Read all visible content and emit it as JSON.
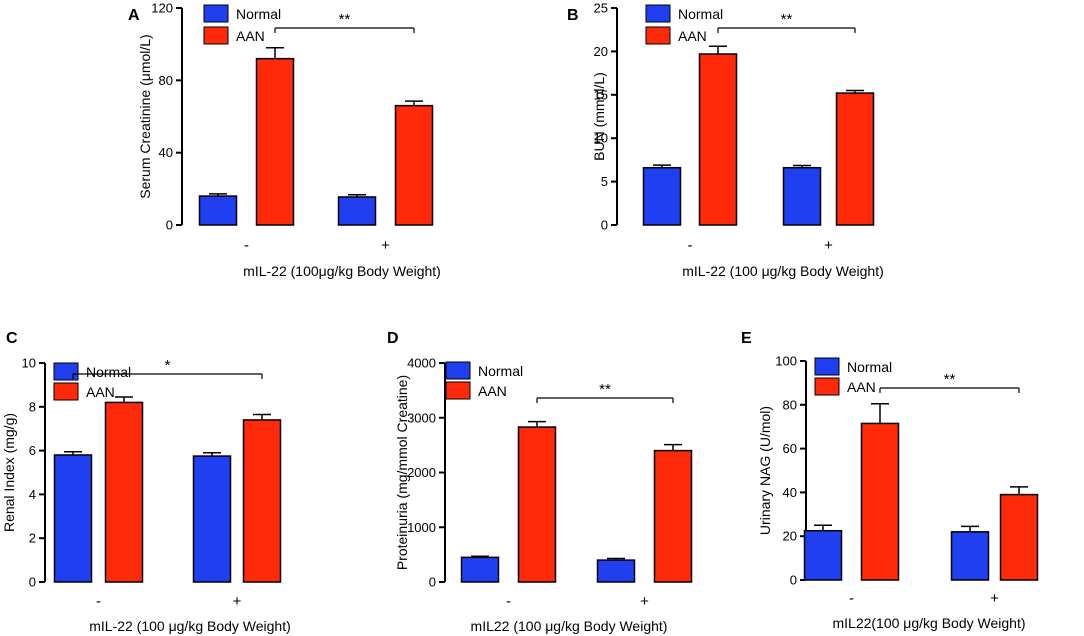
{
  "chart_data": [
    {
      "panel": "A",
      "type": "bar",
      "title": "",
      "ylabel": "Serum Creatinine (μmol/L)",
      "xlabel": "mIL-22 (100μg/kg Body Weight)",
      "categories": [
        "-",
        "+"
      ],
      "ylim": [
        0,
        120
      ],
      "yticks": [
        0,
        40,
        80,
        120
      ],
      "yticklabels": [
        "0",
        "40",
        "80",
        "120"
      ],
      "series": [
        {
          "name": "Normal",
          "color": "#1f3ff0",
          "values": [
            16,
            15.5
          ],
          "errors": [
            1.2,
            1.2
          ]
        },
        {
          "name": "AAN",
          "color": "#ff2a0a",
          "values": [
            92,
            66
          ],
          "errors": [
            6,
            2.5
          ]
        }
      ],
      "significance": {
        "text": "**",
        "from": "AAN:-",
        "to": "AAN:+"
      },
      "legend_position": "top-left"
    },
    {
      "panel": "B",
      "type": "bar",
      "title": "",
      "ylabel": "BUN (mmol/L)",
      "xlabel": "mIL-22 (100 μg/kg Body Weight)",
      "categories": [
        "-",
        "+"
      ],
      "ylim": [
        0,
        25
      ],
      "yticks": [
        0,
        5,
        10,
        15,
        20,
        25
      ],
      "yticklabels": [
        "0",
        "5",
        "10",
        "15",
        "20",
        "25"
      ],
      "series": [
        {
          "name": "Normal",
          "color": "#1f3ff0",
          "values": [
            6.6,
            6.6
          ],
          "errors": [
            0.3,
            0.25
          ]
        },
        {
          "name": "AAN",
          "color": "#ff2a0a",
          "values": [
            19.7,
            15.2
          ],
          "errors": [
            0.9,
            0.3
          ]
        }
      ],
      "significance": {
        "text": "**",
        "from": "AAN:-",
        "to": "AAN:+"
      },
      "legend_position": "top-left"
    },
    {
      "panel": "C",
      "type": "bar",
      "title": "",
      "ylabel": "Renal Index (mg/g)",
      "xlabel": "mIL-22 (100 μg/kg Body Weight)",
      "categories": [
        "-",
        "+"
      ],
      "ylim": [
        0,
        10
      ],
      "yticks": [
        0,
        2,
        4,
        6,
        8,
        10
      ],
      "yticklabels": [
        "0",
        "2",
        "4",
        "6",
        "8",
        "10"
      ],
      "series": [
        {
          "name": "Normal",
          "color": "#1f3ff0",
          "values": [
            5.8,
            5.75
          ],
          "errors": [
            0.15,
            0.15
          ]
        },
        {
          "name": "AAN",
          "color": "#ff2a0a",
          "values": [
            8.2,
            7.4
          ],
          "errors": [
            0.25,
            0.25
          ]
        }
      ],
      "significance": {
        "text": "*",
        "from": "Normal:-",
        "to": "AAN:+"
      },
      "legend_position": "top-left"
    },
    {
      "panel": "D",
      "type": "bar",
      "title": "",
      "ylabel": "Proteinuria (mg/mmol Creatine)",
      "xlabel": "mIL22 (100 μg/kg Body Weight)",
      "categories": [
        "-",
        "+"
      ],
      "ylim": [
        0,
        4000
      ],
      "yticks": [
        0,
        1000,
        2000,
        3000,
        4000
      ],
      "yticklabels": [
        "0",
        "1000",
        "2000",
        "3000",
        "4000"
      ],
      "series": [
        {
          "name": "Normal",
          "color": "#1f3ff0",
          "values": [
            450,
            400
          ],
          "errors": [
            20,
            30
          ]
        },
        {
          "name": "AAN",
          "color": "#ff2a0a",
          "values": [
            2830,
            2400
          ],
          "errors": [
            100,
            110
          ]
        }
      ],
      "significance": {
        "text": "**",
        "from": "AAN:-",
        "to": "AAN:+"
      },
      "legend_position": "top-left"
    },
    {
      "panel": "E",
      "type": "bar",
      "title": "",
      "ylabel": "Urinary NAG (U/mol)",
      "xlabel": "mIL22(100 μg/kg Body Weight)",
      "categories": [
        "-",
        "+"
      ],
      "ylim": [
        0,
        100
      ],
      "yticks": [
        0,
        20,
        40,
        60,
        80,
        100
      ],
      "yticklabels": [
        "0",
        "20",
        "40",
        "60",
        "80",
        "100"
      ],
      "series": [
        {
          "name": "Normal",
          "color": "#1f3ff0",
          "values": [
            22.5,
            22
          ],
          "errors": [
            2.5,
            2.5
          ]
        },
        {
          "name": "AAN",
          "color": "#ff2a0a",
          "values": [
            71.5,
            39
          ],
          "errors": [
            9,
            3.5
          ]
        }
      ],
      "significance": {
        "text": "**",
        "from": "AAN:-",
        "to": "AAN:+"
      },
      "legend_position": "top-left"
    }
  ]
}
